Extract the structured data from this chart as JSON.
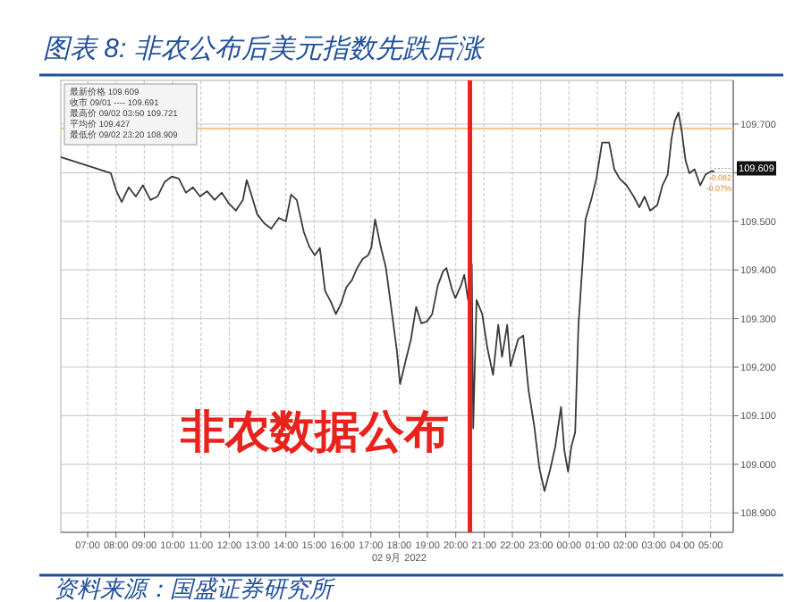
{
  "chart_data": {
    "type": "line",
    "title": "图表 8: 非农公布后美元指数先跌后涨",
    "xlabel": "02 9月 2022",
    "x": [
      "2022-09-02T06:03",
      "2022-09-02T07:49",
      "2022-09-02T08:01",
      "2022-09-02T08:12",
      "2022-09-02T08:27",
      "2022-09-02T08:42",
      "2022-09-02T08:57",
      "2022-09-02T09:13",
      "2022-09-02T09:28",
      "2022-09-02T09:43",
      "2022-09-02T09:58",
      "2022-09-02T10:13",
      "2022-09-02T10:28",
      "2022-09-02T10:43",
      "2022-09-02T10:58",
      "2022-09-02T11:13",
      "2022-09-02T11:29",
      "2022-09-02T11:44",
      "2022-09-02T11:59",
      "2022-09-02T12:14",
      "2022-09-02T12:29",
      "2022-09-02T12:37",
      "2022-09-02T12:48",
      "2022-09-02T12:59",
      "2022-09-02T13:14",
      "2022-09-02T13:29",
      "2022-09-02T13:45",
      "2022-09-02T14:00",
      "2022-09-02T14:11",
      "2022-09-02T14:23",
      "2022-09-02T14:38",
      "2022-09-02T14:49",
      "2022-09-02T15:01",
      "2022-09-02T15:12",
      "2022-09-02T15:23",
      "2022-09-02T15:35",
      "2022-09-02T15:46",
      "2022-09-02T15:57",
      "2022-09-02T16:08",
      "2022-09-02T16:20",
      "2022-09-02T16:31",
      "2022-09-02T16:43",
      "2022-09-02T16:54",
      "2022-09-02T17:01",
      "2022-09-02T17:09",
      "2022-09-02T17:20",
      "2022-09-02T17:32",
      "2022-09-02T17:43",
      "2022-09-02T17:55",
      "2022-09-02T18:02",
      "2022-09-02T18:13",
      "2022-09-02T18:25",
      "2022-09-02T18:36",
      "2022-09-02T18:47",
      "2022-09-02T18:59",
      "2022-09-02T19:10",
      "2022-09-02T19:22",
      "2022-09-02T19:33",
      "2022-09-02T19:40",
      "2022-09-02T19:52",
      "2022-09-02T19:59",
      "2022-09-02T20:11",
      "2022-09-02T20:18",
      "2022-09-02T20:26",
      "2022-09-02T20:34",
      "2022-09-02T20:37",
      "2022-09-02T20:44",
      "2022-09-02T20:56",
      "2022-09-02T21:07",
      "2022-09-02T21:19",
      "2022-09-02T21:30",
      "2022-09-02T21:38",
      "2022-09-02T21:49",
      "2022-09-02T21:56",
      "2022-09-02T22:12",
      "2022-09-02T22:23",
      "2022-09-02T22:34",
      "2022-09-02T22:46",
      "2022-09-02T22:57",
      "2022-09-02T23:08",
      "2022-09-02T23:20",
      "2022-09-02T23:31",
      "2022-09-02T23:43",
      "2022-09-02T23:50",
      "2022-09-02T23:58",
      "2022-09-03T00:05",
      "2022-09-03T00:13",
      "2022-09-03T00:20",
      "2022-09-03T00:28",
      "2022-09-03T00:35",
      "2022-09-03T00:47",
      "2022-09-03T00:58",
      "2022-09-03T01:10",
      "2022-09-03T01:25",
      "2022-09-03T01:36",
      "2022-09-03T01:47",
      "2022-09-03T02:02",
      "2022-09-03T02:17",
      "2022-09-03T02:29",
      "2022-09-03T02:40",
      "2022-09-03T02:52",
      "2022-09-03T03:07",
      "2022-09-03T03:18",
      "2022-09-03T03:29",
      "2022-09-03T03:37",
      "2022-09-03T03:44",
      "2022-09-03T03:52",
      "2022-09-03T03:59",
      "2022-09-03T04:07",
      "2022-09-03T04:15",
      "2022-09-03T04:26",
      "2022-09-03T04:38",
      "2022-09-03T04:49",
      "2022-09-03T05:01",
      "2022-09-03T05:08"
    ],
    "series": [
      {
        "color": "#3a3a3a",
        "values": [
          109.632,
          109.599,
          109.562,
          109.54,
          109.57,
          109.551,
          109.574,
          109.544,
          109.551,
          109.581,
          109.592,
          109.588,
          109.559,
          109.57,
          109.551,
          109.562,
          109.544,
          109.559,
          109.537,
          109.522,
          109.544,
          109.585,
          109.551,
          109.515,
          109.496,
          109.485,
          109.507,
          109.5,
          109.555,
          109.544,
          109.478,
          109.449,
          109.43,
          109.445,
          109.357,
          109.335,
          109.309,
          109.331,
          109.364,
          109.379,
          109.404,
          109.423,
          109.43,
          109.445,
          109.504,
          109.452,
          109.404,
          109.324,
          109.235,
          109.165,
          109.21,
          109.257,
          109.324,
          109.29,
          109.294,
          109.309,
          109.368,
          109.397,
          109.404,
          109.36,
          109.342,
          109.368,
          109.39,
          109.338,
          109.412,
          109.074,
          109.338,
          109.309,
          109.239,
          109.184,
          109.287,
          109.221,
          109.287,
          109.202,
          109.257,
          109.265,
          109.154,
          109.081,
          108.993,
          108.945,
          108.989,
          109.037,
          109.118,
          109.029,
          108.985,
          109.037,
          109.066,
          109.287,
          109.404,
          109.504,
          109.544,
          109.588,
          109.662,
          109.662,
          109.607,
          109.588,
          109.574,
          109.551,
          109.529,
          109.551,
          109.522,
          109.533,
          109.574,
          109.596,
          109.669,
          109.706,
          109.724,
          109.684,
          109.625,
          109.599,
          109.607,
          109.574,
          109.596,
          109.603,
          109.603
        ]
      }
    ],
    "xlim": [
      "2022-09-02T06:03",
      "2022-09-03T05:48"
    ],
    "ylim": [
      108.86,
      109.79
    ],
    "xticks": [
      {
        "value": "2022-09-02T07:00",
        "label": "07:00"
      },
      {
        "value": "2022-09-02T08:00",
        "label": "08:00"
      },
      {
        "value": "2022-09-02T09:00",
        "label": "09:00"
      },
      {
        "value": "2022-09-02T10:00",
        "label": "10:00"
      },
      {
        "value": "2022-09-02T11:00",
        "label": "11:00"
      },
      {
        "value": "2022-09-02T12:00",
        "label": "12:00"
      },
      {
        "value": "2022-09-02T13:00",
        "label": "13:00"
      },
      {
        "value": "2022-09-02T14:00",
        "label": "14:00"
      },
      {
        "value": "2022-09-02T15:00",
        "label": "15:00"
      },
      {
        "value": "2022-09-02T16:00",
        "label": "16:00"
      },
      {
        "value": "2022-09-02T17:00",
        "label": "17:00"
      },
      {
        "value": "2022-09-02T18:00",
        "label": "18:00"
      },
      {
        "value": "2022-09-02T19:00",
        "label": "19:00"
      },
      {
        "value": "2022-09-02T20:00",
        "label": "20:00"
      },
      {
        "value": "2022-09-02T21:00",
        "label": "21:00"
      },
      {
        "value": "2022-09-02T22:00",
        "label": "22:00"
      },
      {
        "value": "2022-09-02T23:00",
        "label": "23:00"
      },
      {
        "value": "2022-09-03T00:00",
        "label": "00:00"
      },
      {
        "value": "2022-09-03T01:00",
        "label": "01:00"
      },
      {
        "value": "2022-09-03T02:00",
        "label": "02:00"
      },
      {
        "value": "2022-09-03T03:00",
        "label": "03:00"
      },
      {
        "value": "2022-09-03T04:00",
        "label": "04:00"
      },
      {
        "value": "2022-09-03T05:00",
        "label": "05:00"
      }
    ],
    "yticks": [
      {
        "value": 108.9,
        "label": "108.900"
      },
      {
        "value": 109.0,
        "label": "109.000"
      },
      {
        "value": 109.1,
        "label": "109.100"
      },
      {
        "value": 109.2,
        "label": "109.200"
      },
      {
        "value": 109.3,
        "label": "109.300"
      },
      {
        "value": 109.4,
        "label": "109.400"
      },
      {
        "value": 109.5,
        "label": "109.500"
      },
      {
        "value": 109.6,
        "label": null
      },
      {
        "value": 109.7,
        "label": "109.700"
      }
    ],
    "grid": true,
    "ref_lines": [
      {
        "axis": "x",
        "value": "2022-09-02T20:30",
        "label": "非农数据公布",
        "color": "#e8221c"
      },
      {
        "axis": "y",
        "value": 109.691,
        "label": null,
        "color": "#f7c88e"
      }
    ],
    "annotations": [
      "最新价格 109.609",
      "收市 09/01 ---- 109.691",
      "最高价 09/02 03:50 109.721",
      "平均价 109.427",
      "最低价 09/02 23:20 108.909",
      "-0.082",
      "-0.07%",
      {
        "text": "109.609",
        "x": "2022-09-03T05:08",
        "y": 109.609
      },
      "资料来源：国盛证券研究所"
    ]
  }
}
